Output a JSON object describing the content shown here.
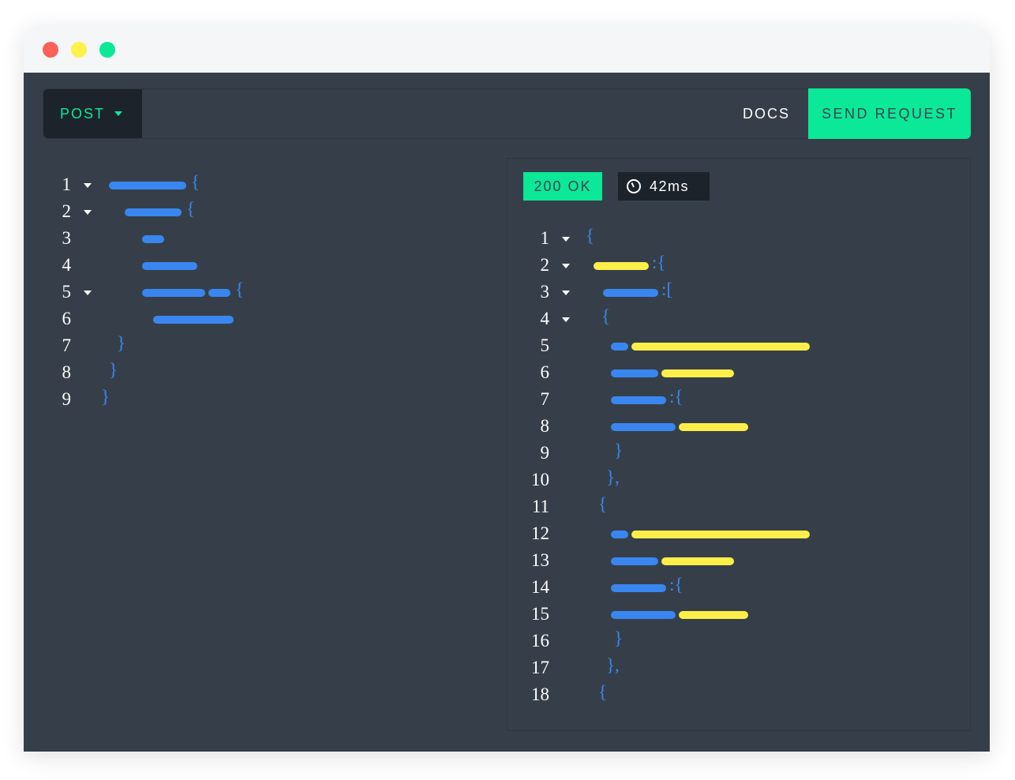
{
  "window": {
    "controls": [
      {
        "name": "close",
        "color": "#fe5f57"
      },
      {
        "name": "minimize",
        "color": "#fef14a"
      },
      {
        "name": "maximize",
        "color": "#0be898"
      }
    ]
  },
  "toolbar": {
    "method": "POST",
    "docs": "DOCS",
    "send": "SEND REQUEST"
  },
  "response": {
    "status": "200 OK",
    "time": "42ms",
    "time_icon": "clock-icon"
  },
  "colors": {
    "accent": "#0be898",
    "key": "#3a86f0",
    "value": "#fdee4a",
    "background": "#363f49"
  },
  "request_lines": [
    {
      "n": "1",
      "fold": true,
      "tok": "{"
    },
    {
      "n": "2",
      "fold": true,
      "tok": "{"
    },
    {
      "n": "3",
      "fold": false,
      "tok": ""
    },
    {
      "n": "4",
      "fold": false,
      "tok": ""
    },
    {
      "n": "5",
      "fold": true,
      "tok": "{"
    },
    {
      "n": "6",
      "fold": false,
      "tok": ""
    },
    {
      "n": "7",
      "fold": false,
      "tok": "}"
    },
    {
      "n": "8",
      "fold": false,
      "tok": "}"
    },
    {
      "n": "9",
      "fold": false,
      "tok": "}"
    }
  ],
  "response_lines": [
    {
      "n": "1",
      "fold": true,
      "tok": "{"
    },
    {
      "n": "2",
      "fold": true,
      "tok": ":{"
    },
    {
      "n": "3",
      "fold": true,
      "tok": ":["
    },
    {
      "n": "4",
      "fold": true,
      "tok": "{"
    },
    {
      "n": "5",
      "fold": false,
      "tok": ""
    },
    {
      "n": "6",
      "fold": false,
      "tok": ""
    },
    {
      "n": "7",
      "fold": false,
      "tok": ":{"
    },
    {
      "n": "8",
      "fold": false,
      "tok": ""
    },
    {
      "n": "9",
      "fold": false,
      "tok": "}"
    },
    {
      "n": "10",
      "fold": false,
      "tok": "},"
    },
    {
      "n": "11",
      "fold": false,
      "tok": "{"
    },
    {
      "n": "12",
      "fold": false,
      "tok": ""
    },
    {
      "n": "13",
      "fold": false,
      "tok": ""
    },
    {
      "n": "14",
      "fold": false,
      "tok": ":{"
    },
    {
      "n": "15",
      "fold": false,
      "tok": ""
    },
    {
      "n": "16",
      "fold": false,
      "tok": "}"
    },
    {
      "n": "17",
      "fold": false,
      "tok": "},"
    },
    {
      "n": "18",
      "fold": false,
      "tok": "{"
    }
  ]
}
